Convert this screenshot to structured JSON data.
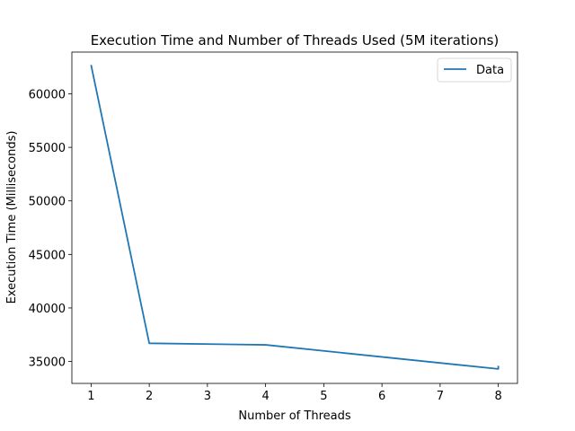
{
  "chart_data": {
    "type": "line",
    "title": "Execution Time and Number of Threads Used (5M iterations)",
    "xlabel": "Number of Threads",
    "ylabel": "Execution Time (Milliseconds)",
    "xlim": [
      0.67,
      8.33
    ],
    "ylim": [
      32950,
      63900
    ],
    "xticks": [
      1,
      2,
      3,
      4,
      5,
      6,
      7,
      8
    ],
    "yticks": [
      35000,
      40000,
      45000,
      50000,
      55000,
      60000
    ],
    "grid": false,
    "legend_position": "top-right",
    "series": [
      {
        "name": "Data",
        "color": "#1f77b4",
        "x": [
          1,
          2,
          4,
          8,
          8
        ],
        "y": [
          62700,
          36700,
          36550,
          34300,
          34600
        ]
      }
    ]
  }
}
